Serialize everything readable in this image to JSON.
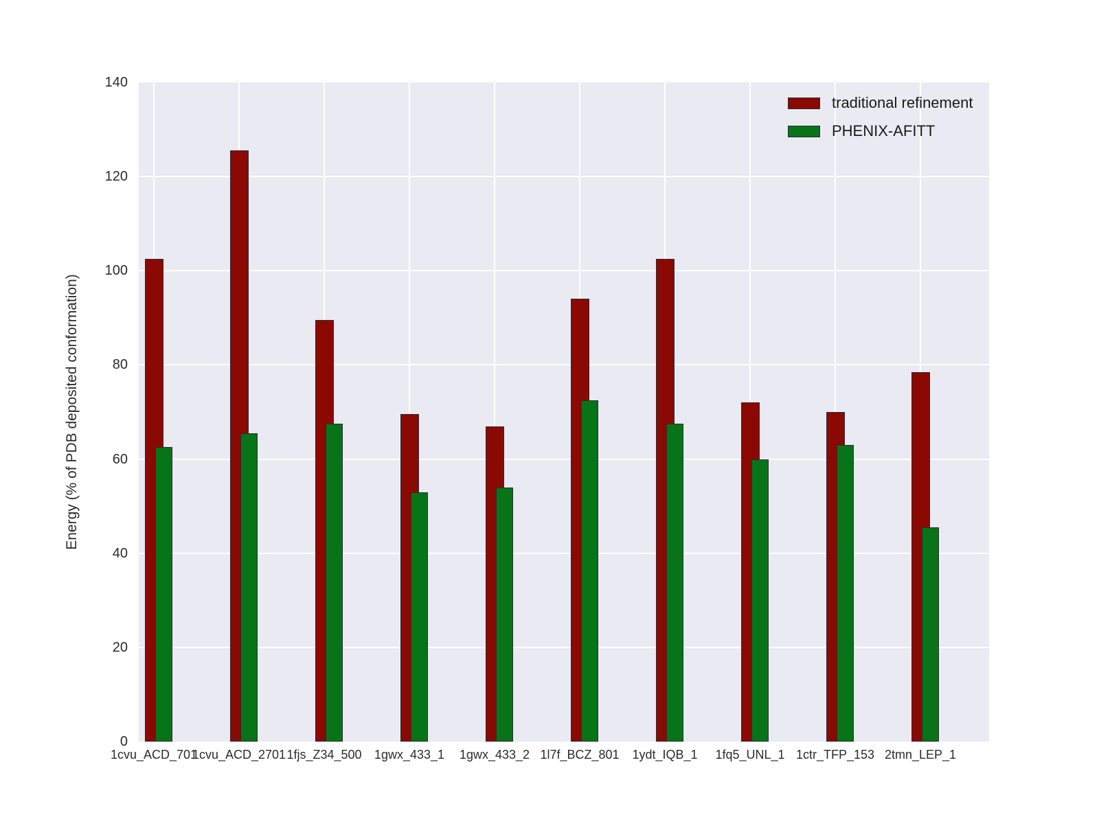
{
  "figure": {
    "background": "#ffffff",
    "plot_background": "#EAEAF2",
    "grid_color": "#ffffff",
    "bar_edge_color": "#2b2b33",
    "tick_label_color": "#2b2b2b"
  },
  "legend": {
    "position": "upper right",
    "items": [
      {
        "label": "traditional refinement",
        "color": "#8B0903"
      },
      {
        "label": "PHENIX-AFITT",
        "color": "#077418"
      }
    ]
  },
  "chart_data": {
    "type": "bar",
    "title": "",
    "xlabel": "",
    "ylabel": "Energy (% of PDB deposited conformation)",
    "ylim": [
      0,
      140
    ],
    "yticks": [
      0,
      20,
      40,
      60,
      80,
      100,
      120,
      140
    ],
    "grid": true,
    "legend_position": "upper right",
    "categories": [
      "1cvu_ACD_701",
      "1cvu_ACD_2701",
      "1fjs_Z34_500",
      "1gwx_433_1",
      "1gwx_433_2",
      "1l7f_BCZ_801",
      "1ydt_IQB_1",
      "1fq5_UNL_1",
      "1ctr_TFP_153",
      "2tmn_LEP_1"
    ],
    "series": [
      {
        "name": "traditional refinement",
        "color": "#8B0903",
        "values": [
          102.5,
          125.5,
          89.5,
          69.5,
          67.0,
          94.0,
          102.5,
          72.0,
          70.0,
          78.5
        ]
      },
      {
        "name": "PHENIX-AFITT",
        "color": "#077418",
        "values": [
          62.5,
          65.5,
          67.5,
          53.0,
          54.0,
          72.5,
          67.5,
          60.0,
          63.0,
          45.5
        ]
      }
    ]
  }
}
